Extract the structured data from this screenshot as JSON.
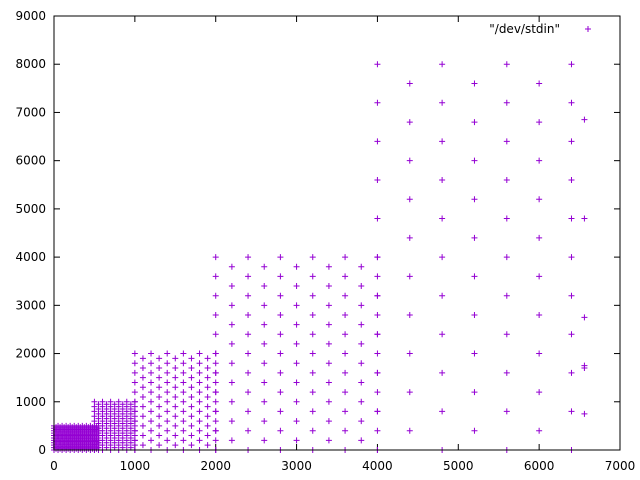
{
  "chart_data": {
    "type": "scatter",
    "title": "",
    "xlabel": "",
    "ylabel": "",
    "xlim": [
      0,
      7000
    ],
    "ylim": [
      0,
      9000
    ],
    "x_ticks": [
      0,
      1000,
      2000,
      3000,
      4000,
      5000,
      6000,
      7000
    ],
    "y_ticks": [
      0,
      1000,
      2000,
      3000,
      4000,
      5000,
      6000,
      7000,
      8000,
      9000
    ],
    "x_tick_labels": [
      "0",
      "1000",
      "2000",
      "3000",
      "4000",
      "5000",
      "6000",
      "7000"
    ],
    "y_tick_labels": [
      "0",
      "1000",
      "2000",
      "3000",
      "4000",
      "5000",
      "6000",
      "7000",
      "8000",
      "9000"
    ],
    "grid": false,
    "legend_position": "top-right",
    "marker": "+",
    "color": "#9400d3",
    "series": [
      {
        "name": "\"/dev/stdin\"",
        "regions": [
          {
            "x_range": [
              0,
              550
            ],
            "y_range": [
              0,
              500
            ],
            "spacing": 50,
            "diagonal": true
          },
          {
            "x_range": [
              500,
              1000
            ],
            "y_range": [
              0,
              1000
            ],
            "spacing": 100,
            "diagonal": true
          },
          {
            "x_range": [
              1000,
              2000
            ],
            "y_range": [
              0,
              2000
            ],
            "spacing": 200,
            "diagonal": true
          },
          {
            "x_range": [
              2000,
              4000
            ],
            "y_range": [
              0,
              4000
            ],
            "spacing": 400,
            "diagonal": true
          },
          {
            "x_range": [
              4000,
              6560
            ],
            "y_range": [
              0,
              8000
            ],
            "spacing": 800,
            "diagonal": true
          }
        ],
        "extra_points": [
          [
            6560,
            1750
          ],
          [
            6560,
            1700
          ],
          [
            6560,
            750
          ],
          [
            6560,
            2750
          ],
          [
            6560,
            4800
          ],
          [
            6560,
            6850
          ]
        ]
      }
    ]
  }
}
